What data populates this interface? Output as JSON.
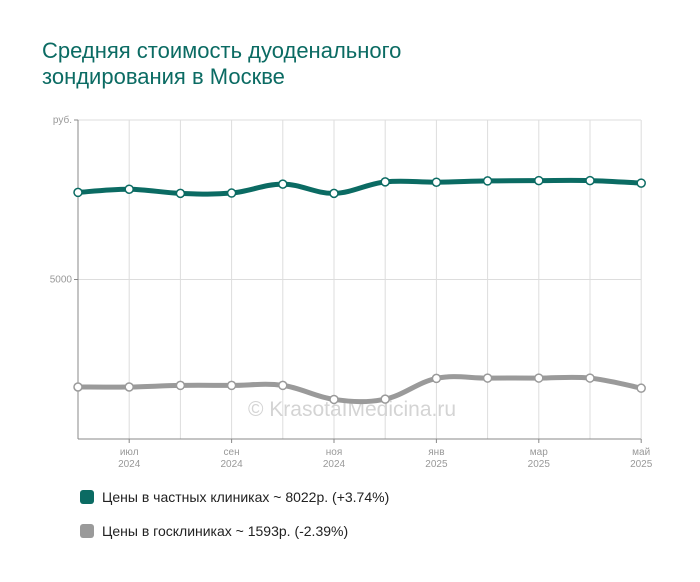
{
  "title_lines": [
    "Средняя стоимость дуоденального",
    "зондирования в Москве"
  ],
  "watermark": "© KrasotaIMedicina.ru",
  "colors": {
    "private": "#0b6b63",
    "public": "#9a9a9a",
    "grid": "#dddddd",
    "axis": "#888888"
  },
  "legend": [
    {
      "label": "Цены в частных клиниках ~ 8022р. (+3.74%)"
    },
    {
      "label": "Цены в госклиниках ~ 1593р. (-2.39%)"
    }
  ],
  "chart_data": {
    "type": "line",
    "ylabel": "руб.",
    "yticks": [
      5000
    ],
    "ylim": [
      0,
      10000
    ],
    "x": [
      "2024-06",
      "2024-07",
      "2024-08",
      "2024-09",
      "2024-10",
      "2024-11",
      "2024-12",
      "2025-01",
      "2025-02",
      "2025-03",
      "2025-04",
      "2025-05"
    ],
    "x_tick_labels": [
      {
        "month": "июл",
        "year": "2024",
        "index": 1
      },
      {
        "month": "сен",
        "year": "2024",
        "index": 3
      },
      {
        "month": "ноя",
        "year": "2024",
        "index": 5
      },
      {
        "month": "янв",
        "year": "2025",
        "index": 7
      },
      {
        "month": "мар",
        "year": "2025",
        "index": 9
      },
      {
        "month": "май",
        "year": "2025",
        "index": 11
      }
    ],
    "series": [
      {
        "key": "private",
        "values": [
          7730,
          7830,
          7700,
          7710,
          7990,
          7700,
          8060,
          8050,
          8090,
          8100,
          8100,
          8022
        ]
      },
      {
        "key": "public",
        "values": [
          1630,
          1630,
          1680,
          1680,
          1680,
          1240,
          1250,
          1900,
          1910,
          1910,
          1910,
          1593
        ]
      }
    ],
    "grid": true
  }
}
